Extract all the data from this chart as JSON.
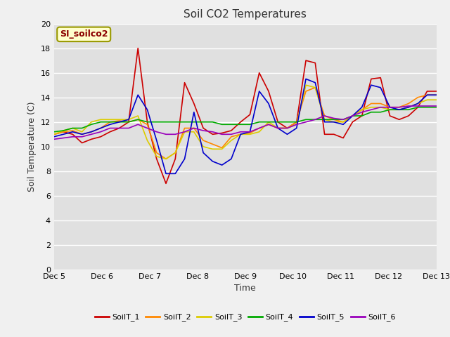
{
  "title": "Soil CO2 Temperatures",
  "xlabel": "Time",
  "ylabel": "Soil Temperature (C)",
  "subtitle_box": "SI_soilco2",
  "ylim": [
    0,
    20
  ],
  "yticks": [
    0,
    2,
    4,
    6,
    8,
    10,
    12,
    14,
    16,
    18,
    20
  ],
  "x_labels": [
    "Dec 5",
    "Dec 6",
    "Dec 7",
    "Dec 8",
    "Dec 9",
    "Dec 10",
    "Dec 11",
    "Dec 12",
    "Dec 13"
  ],
  "fig_bg_color": "#f0f0f0",
  "ax_bg_color": "#e0e0e0",
  "grid_color": "#ffffff",
  "colors": {
    "SoilT_1": "#cc0000",
    "SoilT_2": "#ff8800",
    "SoilT_3": "#ddcc00",
    "SoilT_4": "#00aa00",
    "SoilT_5": "#0000cc",
    "SoilT_6": "#9900bb"
  },
  "series": {
    "SoilT_1": [
      11.0,
      11.2,
      11.0,
      10.3,
      10.6,
      10.8,
      11.2,
      11.5,
      12.0,
      18.0,
      12.0,
      9.0,
      7.0,
      9.0,
      15.2,
      13.5,
      11.5,
      11.0,
      11.1,
      11.3,
      12.0,
      12.6,
      16.0,
      14.5,
      12.0,
      11.5,
      12.0,
      17.0,
      16.8,
      11.0,
      11.0,
      10.7,
      12.0,
      12.5,
      15.5,
      15.6,
      12.5,
      12.2,
      12.5,
      13.2,
      14.5,
      14.5
    ],
    "SoilT_2": [
      11.0,
      11.2,
      11.3,
      11.0,
      11.2,
      11.5,
      12.0,
      12.1,
      12.0,
      12.2,
      11.8,
      9.5,
      9.0,
      9.5,
      11.5,
      11.5,
      10.5,
      10.2,
      9.9,
      10.8,
      11.0,
      11.1,
      11.5,
      11.8,
      11.5,
      11.5,
      12.0,
      14.5,
      14.8,
      12.5,
      12.2,
      12.0,
      12.5,
      13.0,
      13.5,
      13.5,
      13.2,
      13.2,
      13.5,
      14.0,
      14.2,
      14.2
    ],
    "SoilT_3": [
      11.0,
      11.3,
      11.5,
      11.2,
      12.0,
      12.2,
      12.2,
      12.2,
      12.2,
      12.5,
      10.5,
      9.2,
      9.0,
      9.5,
      11.2,
      11.2,
      10.0,
      9.8,
      9.8,
      10.5,
      11.0,
      11.0,
      11.2,
      12.0,
      11.5,
      11.5,
      11.8,
      15.0,
      14.8,
      12.2,
      12.0,
      12.0,
      12.5,
      13.0,
      13.2,
      13.2,
      13.0,
      13.0,
      13.2,
      13.5,
      13.8,
      13.8
    ],
    "SoilT_4": [
      11.2,
      11.3,
      11.5,
      11.5,
      11.8,
      12.0,
      12.0,
      12.0,
      12.0,
      12.2,
      12.0,
      12.0,
      12.0,
      12.0,
      12.0,
      12.0,
      12.0,
      12.0,
      11.8,
      11.8,
      11.8,
      11.8,
      12.0,
      12.0,
      12.0,
      12.0,
      12.0,
      12.2,
      12.2,
      12.2,
      12.2,
      12.2,
      12.5,
      12.5,
      12.8,
      12.8,
      13.0,
      13.0,
      13.0,
      13.2,
      13.2,
      13.2
    ],
    "SoilT_5": [
      10.8,
      11.0,
      11.2,
      11.0,
      11.2,
      11.5,
      11.8,
      12.0,
      12.2,
      14.2,
      13.0,
      10.5,
      7.8,
      7.8,
      9.0,
      12.8,
      9.5,
      8.8,
      8.5,
      9.0,
      11.0,
      11.2,
      14.5,
      13.5,
      11.5,
      11.0,
      11.5,
      15.5,
      15.2,
      12.0,
      12.0,
      11.8,
      12.5,
      13.2,
      15.0,
      14.8,
      13.2,
      13.0,
      13.2,
      13.5,
      14.2,
      14.2
    ],
    "SoilT_6": [
      10.6,
      10.7,
      10.8,
      10.8,
      11.0,
      11.2,
      11.5,
      11.5,
      11.5,
      11.8,
      11.5,
      11.2,
      11.0,
      11.0,
      11.2,
      11.5,
      11.3,
      11.2,
      11.0,
      11.0,
      11.2,
      11.2,
      11.5,
      11.8,
      11.5,
      11.5,
      11.8,
      12.0,
      12.2,
      12.5,
      12.3,
      12.2,
      12.5,
      12.8,
      13.0,
      13.2,
      13.2,
      13.2,
      13.3,
      13.3,
      13.3,
      13.3
    ]
  }
}
